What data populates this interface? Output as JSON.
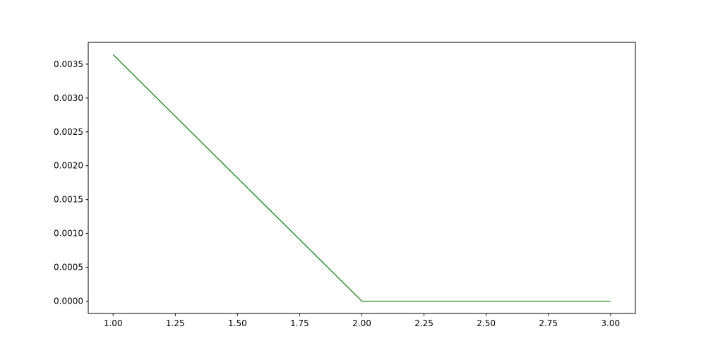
{
  "chart_data": {
    "type": "line",
    "title": "",
    "xlabel": "",
    "ylabel": "",
    "xlim": [
      0.9,
      3.1
    ],
    "ylim": [
      -0.000182,
      0.003822
    ],
    "grid": false,
    "x_ticks": [
      "1.00",
      "1.25",
      "1.50",
      "1.75",
      "2.00",
      "2.25",
      "2.50",
      "2.75",
      "3.00"
    ],
    "y_ticks": [
      "0.0000",
      "0.0005",
      "0.0010",
      "0.0015",
      "0.0020",
      "0.0025",
      "0.0030",
      "0.0035"
    ],
    "series": [
      {
        "color": "#008000",
        "x": [
          1,
          2,
          3
        ],
        "y": [
          0.00364,
          0.0,
          0.0
        ]
      }
    ]
  }
}
